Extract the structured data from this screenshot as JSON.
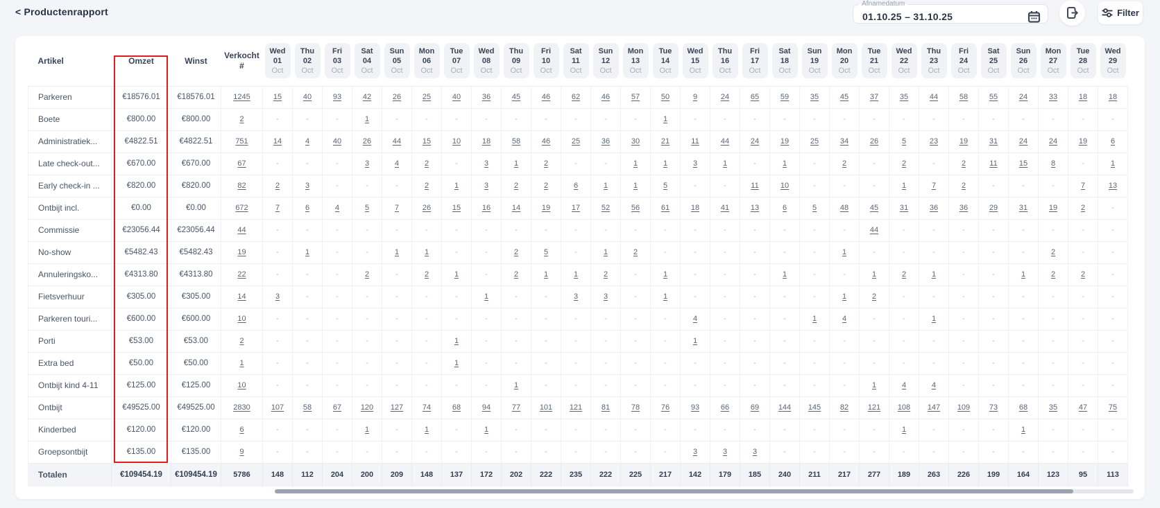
{
  "page": {
    "title": "< Productenrapport"
  },
  "toolbar": {
    "date_filter": {
      "label": "Afnamedatum",
      "value": "01.10.25 – 31.10.25"
    },
    "filter_label": "Filter"
  },
  "annotation": {
    "highlight_color": "#e21c1c",
    "highlighted_column": "Omzet"
  },
  "table": {
    "headers": {
      "artikel": "Artikel",
      "omzet": "Omzet",
      "winst": "Winst",
      "verkocht": "Verkocht\n#"
    },
    "day_columns": [
      {
        "dow": "Wed",
        "day": "01",
        "month": "Oct"
      },
      {
        "dow": "Thu",
        "day": "02",
        "month": "Oct"
      },
      {
        "dow": "Fri",
        "day": "03",
        "month": "Oct"
      },
      {
        "dow": "Sat",
        "day": "04",
        "month": "Oct"
      },
      {
        "dow": "Sun",
        "day": "05",
        "month": "Oct"
      },
      {
        "dow": "Mon",
        "day": "06",
        "month": "Oct"
      },
      {
        "dow": "Tue",
        "day": "07",
        "month": "Oct"
      },
      {
        "dow": "Wed",
        "day": "08",
        "month": "Oct"
      },
      {
        "dow": "Thu",
        "day": "09",
        "month": "Oct"
      },
      {
        "dow": "Fri",
        "day": "10",
        "month": "Oct"
      },
      {
        "dow": "Sat",
        "day": "11",
        "month": "Oct"
      },
      {
        "dow": "Sun",
        "day": "12",
        "month": "Oct"
      },
      {
        "dow": "Mon",
        "day": "13",
        "month": "Oct"
      },
      {
        "dow": "Tue",
        "day": "14",
        "month": "Oct"
      },
      {
        "dow": "Wed",
        "day": "15",
        "month": "Oct"
      },
      {
        "dow": "Thu",
        "day": "16",
        "month": "Oct"
      },
      {
        "dow": "Fri",
        "day": "17",
        "month": "Oct"
      },
      {
        "dow": "Sat",
        "day": "18",
        "month": "Oct"
      },
      {
        "dow": "Sun",
        "day": "19",
        "month": "Oct"
      },
      {
        "dow": "Mon",
        "day": "20",
        "month": "Oct"
      },
      {
        "dow": "Tue",
        "day": "21",
        "month": "Oct"
      },
      {
        "dow": "Wed",
        "day": "22",
        "month": "Oct"
      },
      {
        "dow": "Thu",
        "day": "23",
        "month": "Oct"
      },
      {
        "dow": "Fri",
        "day": "24",
        "month": "Oct"
      },
      {
        "dow": "Sat",
        "day": "25",
        "month": "Oct"
      },
      {
        "dow": "Sun",
        "day": "26",
        "month": "Oct"
      },
      {
        "dow": "Mon",
        "day": "27",
        "month": "Oct"
      },
      {
        "dow": "Tue",
        "day": "28",
        "month": "Oct"
      },
      {
        "dow": "Wed",
        "day": "29",
        "month": "Oct"
      }
    ],
    "rows": [
      {
        "artikel": "Parkeren",
        "omzet": "€18576.01",
        "winst": "€18576.01",
        "verkocht": "1245",
        "daily": [
          "15",
          "40",
          "93",
          "42",
          "26",
          "25",
          "40",
          "36",
          "45",
          "46",
          "62",
          "46",
          "57",
          "50",
          "9",
          "24",
          "65",
          "59",
          "35",
          "45",
          "37",
          "35",
          "44",
          "58",
          "55",
          "24",
          "33",
          "18",
          "18"
        ]
      },
      {
        "artikel": "Boete",
        "omzet": "€800.00",
        "winst": "€800.00",
        "verkocht": "2",
        "daily": [
          "-",
          "-",
          "-",
          "1",
          "-",
          "-",
          "-",
          "-",
          "-",
          "-",
          "-",
          "-",
          "-",
          "1",
          "-",
          "-",
          "-",
          "-",
          "-",
          "-",
          "-",
          "-",
          "-",
          "-",
          "-",
          "-",
          "-",
          "-",
          "-"
        ]
      },
      {
        "artikel": "Administratiek...",
        "omzet": "€4822.51",
        "winst": "€4822.51",
        "verkocht": "751",
        "daily": [
          "14",
          "4",
          "40",
          "26",
          "44",
          "15",
          "10",
          "18",
          "58",
          "46",
          "25",
          "36",
          "30",
          "21",
          "11",
          "44",
          "24",
          "19",
          "25",
          "34",
          "26",
          "5",
          "23",
          "19",
          "31",
          "24",
          "24",
          "19",
          "6"
        ]
      },
      {
        "artikel": "Late check-out...",
        "omzet": "€670.00",
        "winst": "€670.00",
        "verkocht": "67",
        "daily": [
          "-",
          "-",
          "-",
          "3",
          "4",
          "2",
          "-",
          "3",
          "1",
          "2",
          "-",
          "-",
          "1",
          "1",
          "3",
          "1",
          "-",
          "1",
          "-",
          "2",
          "-",
          "2",
          "-",
          "2",
          "11",
          "15",
          "8",
          "-",
          "1"
        ]
      },
      {
        "artikel": "Early check-in ...",
        "omzet": "€820.00",
        "winst": "€820.00",
        "verkocht": "82",
        "daily": [
          "2",
          "3",
          "-",
          "-",
          "-",
          "2",
          "1",
          "3",
          "2",
          "2",
          "6",
          "1",
          "1",
          "5",
          "-",
          "-",
          "11",
          "10",
          "-",
          "-",
          "-",
          "1",
          "7",
          "2",
          "-",
          "-",
          "-",
          "7",
          "13"
        ]
      },
      {
        "artikel": "Ontbijt incl.",
        "omzet": "€0.00",
        "winst": "€0.00",
        "verkocht": "672",
        "daily": [
          "7",
          "6",
          "4",
          "5",
          "7",
          "26",
          "15",
          "16",
          "14",
          "19",
          "17",
          "52",
          "56",
          "61",
          "18",
          "41",
          "13",
          "6",
          "5",
          "48",
          "45",
          "31",
          "36",
          "36",
          "29",
          "31",
          "19",
          "2",
          "-"
        ]
      },
      {
        "artikel": "Commissie",
        "omzet": "€23056.44",
        "winst": "€23056.44",
        "verkocht": "44",
        "daily": [
          "-",
          "-",
          "-",
          "-",
          "-",
          "-",
          "-",
          "-",
          "-",
          "-",
          "-",
          "-",
          "-",
          "-",
          "-",
          "-",
          "-",
          "-",
          "-",
          "-",
          "44",
          "-",
          "-",
          "-",
          "-",
          "-",
          "-",
          "-",
          "-"
        ]
      },
      {
        "artikel": "No-show",
        "omzet": "€5482.43",
        "winst": "€5482.43",
        "verkocht": "19",
        "daily": [
          "-",
          "1",
          "-",
          "-",
          "1",
          "1",
          "-",
          "-",
          "2",
          "5",
          "-",
          "1",
          "2",
          "-",
          "-",
          "-",
          "-",
          "-",
          "-",
          "1",
          "-",
          "-",
          "-",
          "-",
          "-",
          "-",
          "2",
          "-",
          "-"
        ]
      },
      {
        "artikel": "Annuleringsko...",
        "omzet": "€4313.80",
        "winst": "€4313.80",
        "verkocht": "22",
        "daily": [
          "-",
          "-",
          "-",
          "2",
          "-",
          "2",
          "1",
          "-",
          "2",
          "1",
          "1",
          "2",
          "-",
          "1",
          "-",
          "-",
          "-",
          "1",
          "-",
          "-",
          "1",
          "2",
          "1",
          "-",
          "-",
          "1",
          "2",
          "2",
          "-"
        ]
      },
      {
        "artikel": "Fietsverhuur",
        "omzet": "€305.00",
        "winst": "€305.00",
        "verkocht": "14",
        "daily": [
          "3",
          "-",
          "-",
          "-",
          "-",
          "-",
          "-",
          "1",
          "-",
          "-",
          "3",
          "3",
          "-",
          "1",
          "-",
          "-",
          "-",
          "-",
          "-",
          "1",
          "2",
          "-",
          "-",
          "-",
          "-",
          "-",
          "-",
          "-",
          "-"
        ]
      },
      {
        "artikel": "Parkeren touri...",
        "omzet": "€600.00",
        "winst": "€600.00",
        "verkocht": "10",
        "daily": [
          "-",
          "-",
          "-",
          "-",
          "-",
          "-",
          "-",
          "-",
          "-",
          "-",
          "-",
          "-",
          "-",
          "-",
          "4",
          "-",
          "-",
          "-",
          "1",
          "4",
          "-",
          "-",
          "1",
          "-",
          "-",
          "-",
          "-",
          "-",
          "-"
        ]
      },
      {
        "artikel": "Porti",
        "omzet": "€53.00",
        "winst": "€53.00",
        "verkocht": "2",
        "daily": [
          "-",
          "-",
          "-",
          "-",
          "-",
          "-",
          "1",
          "-",
          "-",
          "-",
          "-",
          "-",
          "-",
          "-",
          "1",
          "-",
          "-",
          "-",
          "-",
          "-",
          "-",
          "-",
          "-",
          "-",
          "-",
          "-",
          "-",
          "-",
          "-"
        ]
      },
      {
        "artikel": "Extra bed",
        "omzet": "€50.00",
        "winst": "€50.00",
        "verkocht": "1",
        "daily": [
          "-",
          "-",
          "-",
          "-",
          "-",
          "-",
          "1",
          "-",
          "-",
          "-",
          "-",
          "-",
          "-",
          "-",
          "-",
          "-",
          "-",
          "-",
          "-",
          "-",
          "-",
          "-",
          "-",
          "-",
          "-",
          "-",
          "-",
          "-",
          "-"
        ]
      },
      {
        "artikel": "Ontbijt kind 4-11",
        "omzet": "€125.00",
        "winst": "€125.00",
        "verkocht": "10",
        "daily": [
          "-",
          "-",
          "-",
          "-",
          "-",
          "-",
          "-",
          "-",
          "1",
          "-",
          "-",
          "-",
          "-",
          "-",
          "-",
          "-",
          "-",
          "-",
          "-",
          "-",
          "1",
          "4",
          "4",
          "-",
          "-",
          "-",
          "-",
          "-",
          "-"
        ]
      },
      {
        "artikel": "Ontbijt",
        "omzet": "€49525.00",
        "winst": "€49525.00",
        "verkocht": "2830",
        "daily": [
          "107",
          "58",
          "67",
          "120",
          "127",
          "74",
          "68",
          "94",
          "77",
          "101",
          "121",
          "81",
          "78",
          "76",
          "93",
          "66",
          "69",
          "144",
          "145",
          "82",
          "121",
          "108",
          "147",
          "109",
          "73",
          "68",
          "35",
          "47",
          "75"
        ]
      },
      {
        "artikel": "Kinderbed",
        "omzet": "€120.00",
        "winst": "€120.00",
        "verkocht": "6",
        "daily": [
          "-",
          "-",
          "-",
          "1",
          "-",
          "1",
          "-",
          "1",
          "-",
          "-",
          "-",
          "-",
          "-",
          "-",
          "-",
          "-",
          "-",
          "-",
          "-",
          "-",
          "-",
          "1",
          "-",
          "-",
          "-",
          "1",
          "-",
          "-",
          "-"
        ]
      },
      {
        "artikel": "Groepsontbijt",
        "omzet": "€135.00",
        "winst": "€135.00",
        "verkocht": "9",
        "daily": [
          "-",
          "-",
          "-",
          "-",
          "-",
          "-",
          "-",
          "-",
          "-",
          "-",
          "-",
          "-",
          "-",
          "-",
          "3",
          "3",
          "3",
          "-",
          "-",
          "-",
          "-",
          "-",
          "-",
          "-",
          "-",
          "-",
          "-",
          "-",
          "-"
        ]
      }
    ],
    "totals": {
      "label": "Totalen",
      "omzet": "€109454.19",
      "winst": "€109454.19",
      "verkocht": "5786",
      "daily": [
        "148",
        "112",
        "204",
        "200",
        "209",
        "148",
        "137",
        "172",
        "202",
        "222",
        "235",
        "222",
        "225",
        "217",
        "142",
        "179",
        "185",
        "240",
        "211",
        "217",
        "277",
        "189",
        "263",
        "226",
        "199",
        "164",
        "123",
        "95",
        "113"
      ]
    }
  }
}
